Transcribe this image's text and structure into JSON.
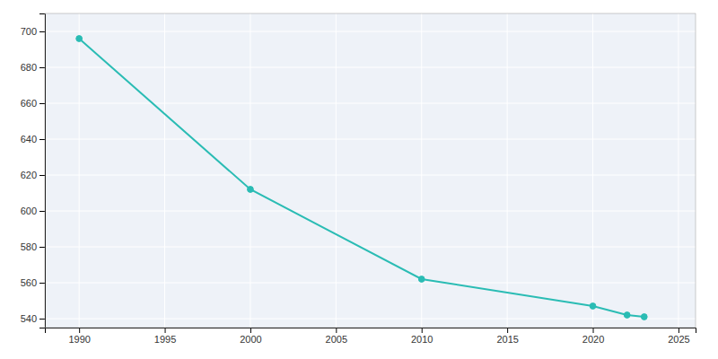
{
  "chart_data": {
    "type": "line",
    "x": [
      1990,
      2000,
      2010,
      2020,
      2022,
      2023
    ],
    "values": [
      696,
      612,
      562,
      547,
      542,
      541
    ],
    "color": "#2abcb4",
    "marker": "circle",
    "xlim": [
      1988,
      2026
    ],
    "ylim": [
      535,
      710
    ],
    "xticks": [
      1990,
      1995,
      2000,
      2005,
      2010,
      2015,
      2020,
      2025
    ],
    "yticks": [
      540,
      560,
      580,
      600,
      620,
      640,
      660,
      680,
      700
    ],
    "grid": true
  }
}
